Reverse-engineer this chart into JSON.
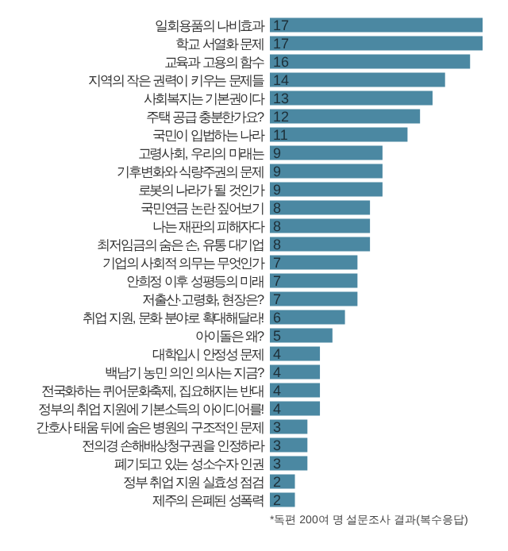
{
  "chart_data": {
    "type": "bar",
    "orientation": "horizontal",
    "color": "#4b88a2",
    "data_labels": true,
    "categories": [
      "일회용품의 나비효과",
      "학교 서열화 문제",
      "교육과 고용의 함수",
      "지역의 작은 권력이 키우는 문제들",
      "사회복지는 기본권이다",
      "주택 공급 충분한가요?",
      "국민이 입법하는 나라",
      "고령사회, 우리의 미래는",
      "기후변화와 식량주권의 문제",
      "로봇의 나라가 될 것인가",
      "국민연금 논란 짚어보기",
      "나는 재판의 피해자다",
      "최저임금의 숨은 손, 유통 대기업",
      "기업의 사회적 의무는 무엇인가",
      "안희정 이후 성평등의 미래",
      "저출산·고령화, 현장은?",
      "취업 지원, 문화 분야로 확대해달라!",
      "아이돌은 왜?",
      "대학입시 안정성 문제",
      "백남기 농민 의인 의사는 지금?",
      "전국화하는 퀴어문화축제, 집요해지는 반대",
      "정부의 취업 지원에 기본소득의 아이디어를!",
      "간호사 태움 뒤에 숨은 병원의 구조적인 문제",
      "전의경 손해배상청구권을 인정하라",
      "폐기되고 있는 성소수자 인권",
      "정부 취업 지원 실효성 점검",
      "제주의 은폐된 성폭력"
    ],
    "values": [
      17,
      17,
      16,
      14,
      13,
      12,
      11,
      9,
      9,
      9,
      8,
      8,
      8,
      7,
      7,
      7,
      6,
      5,
      4,
      4,
      4,
      4,
      3,
      3,
      3,
      2,
      2
    ],
    "annotations": [
      "*독편 200여 명 설문조사 결과(복수응답)"
    ]
  }
}
